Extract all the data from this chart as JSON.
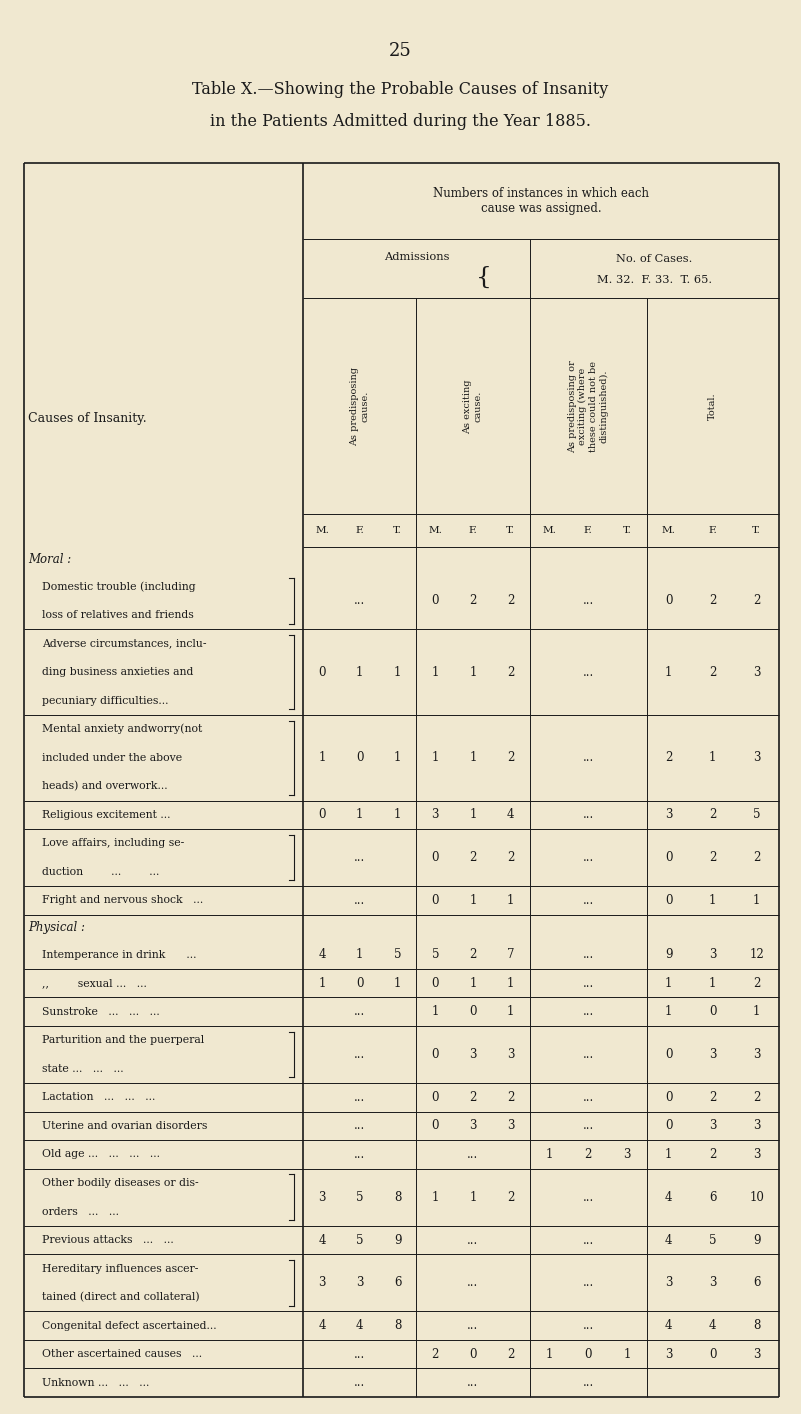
{
  "page_number": "25",
  "title_line1": "Table X.—Showing the Probable Causes of Insanity",
  "title_line2": "in the Patients Admitted during the Year 1885.",
  "bg_color": "#f0e8d0",
  "text_color": "#1a1a1a",
  "cases_detail": "M. 32.  F. 33.  T. 65.",
  "rows": [
    {
      "label": [
        "Domestic trouble (including",
        "loss of relatives and friends"
      ],
      "bracket": true,
      "indent": true,
      "pred": [
        "",
        "",
        ""
      ],
      "pred_dots": true,
      "exc": [
        "0",
        "2",
        "2"
      ],
      "exc_dots": false,
      "both": [
        "",
        "",
        ""
      ],
      "both_dots": true,
      "total": [
        "0",
        "2",
        "2"
      ]
    },
    {
      "label": [
        "Adverse circumstances, inclu-",
        "ding business anxieties and",
        "pecuniary difficulties..."
      ],
      "bracket": true,
      "indent": true,
      "pred": [
        "0",
        "1",
        "1"
      ],
      "pred_dots": false,
      "exc": [
        "1",
        "1",
        "2"
      ],
      "exc_dots": false,
      "both": [
        "",
        "",
        ""
      ],
      "both_dots": true,
      "total": [
        "1",
        "2",
        "3"
      ]
    },
    {
      "label": [
        "Mental anxiety andworry(not",
        "included under the above",
        "heads) and overwork..."
      ],
      "bracket": true,
      "indent": true,
      "pred": [
        "1",
        "0",
        "1"
      ],
      "pred_dots": false,
      "exc": [
        "1",
        "1",
        "2"
      ],
      "exc_dots": false,
      "both": [
        "",
        "",
        ""
      ],
      "both_dots": true,
      "total": [
        "2",
        "1",
        "3"
      ]
    },
    {
      "label": [
        "Religious excitement ..."
      ],
      "bracket": false,
      "indent": true,
      "pred": [
        "0",
        "1",
        "1"
      ],
      "pred_dots": false,
      "exc": [
        "3",
        "1",
        "4"
      ],
      "exc_dots": false,
      "both": [
        "",
        "",
        ""
      ],
      "both_dots": true,
      "total": [
        "3",
        "2",
        "5"
      ]
    },
    {
      "label": [
        "Love affairs, including se-",
        "duction        ...        ..."
      ],
      "bracket": true,
      "indent": true,
      "pred": [
        "",
        "",
        ""
      ],
      "pred_dots": true,
      "exc": [
        "0",
        "2",
        "2"
      ],
      "exc_dots": false,
      "both": [
        "",
        "",
        ""
      ],
      "both_dots": true,
      "total": [
        "0",
        "2",
        "2"
      ]
    },
    {
      "label": [
        "Fright and nervous shock   ..."
      ],
      "bracket": false,
      "indent": true,
      "pred": [
        "",
        "",
        ""
      ],
      "pred_dots": true,
      "exc": [
        "0",
        "1",
        "1"
      ],
      "exc_dots": false,
      "both": [
        "",
        "",
        ""
      ],
      "both_dots": true,
      "total": [
        "0",
        "1",
        "1"
      ]
    },
    {
      "label": [
        "Intemperance in drink      ..."
      ],
      "bracket": false,
      "indent": true,
      "pred": [
        "4",
        "1",
        "5"
      ],
      "pred_dots": false,
      "exc": [
        "5",
        "2",
        "7"
      ],
      "exc_dots": false,
      "both": [
        "",
        "",
        ""
      ],
      "both_dots": true,
      "total": [
        "9",
        "3",
        "12"
      ]
    },
    {
      "label": [
        ",,    sexual ...   ..."
      ],
      "bracket": false,
      "indent": true,
      "pred": [
        "1",
        "0",
        "1"
      ],
      "pred_dots": false,
      "exc": [
        "0",
        "1",
        "1"
      ],
      "exc_dots": false,
      "both": [
        "",
        "",
        ""
      ],
      "both_dots": true,
      "total": [
        "1",
        "1",
        "2"
      ]
    },
    {
      "label": [
        "Sunstroke   ...   ...   ..."
      ],
      "bracket": false,
      "indent": true,
      "pred": [
        "",
        "",
        ""
      ],
      "pred_dots": true,
      "exc": [
        "1",
        "0",
        "1"
      ],
      "exc_dots": false,
      "both": [
        "",
        "",
        ""
      ],
      "both_dots": true,
      "total": [
        "1",
        "0",
        "1"
      ]
    },
    {
      "label": [
        "Parturition and the puerperal",
        "state ...   ...   ..."
      ],
      "bracket": true,
      "indent": true,
      "pred": [
        "",
        "",
        ""
      ],
      "pred_dots": true,
      "exc": [
        "0",
        "3",
        "3"
      ],
      "exc_dots": false,
      "both": [
        "",
        "",
        ""
      ],
      "both_dots": true,
      "total": [
        "0",
        "3",
        "3"
      ]
    },
    {
      "label": [
        "Lactation   ...   ...   ..."
      ],
      "bracket": false,
      "indent": true,
      "pred": [
        "",
        "",
        ""
      ],
      "pred_dots": true,
      "exc": [
        "0",
        "2",
        "2"
      ],
      "exc_dots": false,
      "both": [
        "",
        "",
        ""
      ],
      "both_dots": true,
      "total": [
        "0",
        "2",
        "2"
      ]
    },
    {
      "label": [
        "Uterine and ovarian disorders"
      ],
      "bracket": false,
      "indent": true,
      "pred": [
        "",
        "",
        ""
      ],
      "pred_dots": true,
      "exc": [
        "0",
        "3",
        "3"
      ],
      "exc_dots": false,
      "both": [
        "",
        "",
        ""
      ],
      "both_dots": true,
      "total": [
        "0",
        "3",
        "3"
      ]
    },
    {
      "label": [
        "Old age ...   ...   ...   ..."
      ],
      "bracket": false,
      "indent": true,
      "pred": [
        "",
        "",
        ""
      ],
      "pred_dots": true,
      "exc": [
        "",
        "",
        ""
      ],
      "exc_dots": true,
      "both": [
        "1",
        "2",
        "3"
      ],
      "both_dots": false,
      "total": [
        "1",
        "2",
        "3"
      ]
    },
    {
      "label": [
        "Other bodily diseases or dis-",
        "orders   ...   ..."
      ],
      "bracket": true,
      "indent": true,
      "pred": [
        "3",
        "5",
        "8"
      ],
      "pred_dots": false,
      "exc": [
        "1",
        "1",
        "2"
      ],
      "exc_dots": false,
      "both": [
        "",
        "",
        ""
      ],
      "both_dots": true,
      "total": [
        "4",
        "6",
        "10"
      ]
    },
    {
      "label": [
        "Previous attacks   ...   ..."
      ],
      "bracket": false,
      "indent": true,
      "pred": [
        "4",
        "5",
        "9"
      ],
      "pred_dots": false,
      "exc": [
        "",
        "",
        ""
      ],
      "exc_dots": true,
      "both": [
        "",
        "",
        ""
      ],
      "both_dots": true,
      "total": [
        "4",
        "5",
        "9"
      ]
    },
    {
      "label": [
        "Hereditary influences ascer-",
        "tained (direct and collateral)"
      ],
      "bracket": true,
      "indent": true,
      "pred": [
        "3",
        "3",
        "6"
      ],
      "pred_dots": false,
      "exc": [
        "",
        "",
        ""
      ],
      "exc_dots": true,
      "both": [
        "",
        "",
        ""
      ],
      "both_dots": true,
      "total": [
        "3",
        "3",
        "6"
      ]
    },
    {
      "label": [
        "Congenital defect ascertained..."
      ],
      "bracket": false,
      "indent": true,
      "pred": [
        "4",
        "4",
        "8"
      ],
      "pred_dots": false,
      "exc": [
        "",
        "",
        ""
      ],
      "exc_dots": true,
      "both": [
        "",
        "",
        ""
      ],
      "both_dots": true,
      "total": [
        "4",
        "4",
        "8"
      ]
    },
    {
      "label": [
        "Other ascertained causes   ..."
      ],
      "bracket": false,
      "indent": true,
      "pred": [
        "",
        "",
        ""
      ],
      "pred_dots": true,
      "exc": [
        "2",
        "0",
        "2"
      ],
      "exc_dots": false,
      "both": [
        "1",
        "0",
        "1"
      ],
      "both_dots": false,
      "total": [
        "3",
        "0",
        "3"
      ]
    },
    {
      "label": [
        "Unknown ...   ...   ..."
      ],
      "bracket": false,
      "indent": true,
      "pred": [
        "",
        "",
        ""
      ],
      "pred_dots": true,
      "exc": [
        "",
        "",
        ""
      ],
      "exc_dots": true,
      "both": [
        "",
        "",
        ""
      ],
      "both_dots": true,
      "total": [
        "",
        "",
        ""
      ]
    }
  ]
}
